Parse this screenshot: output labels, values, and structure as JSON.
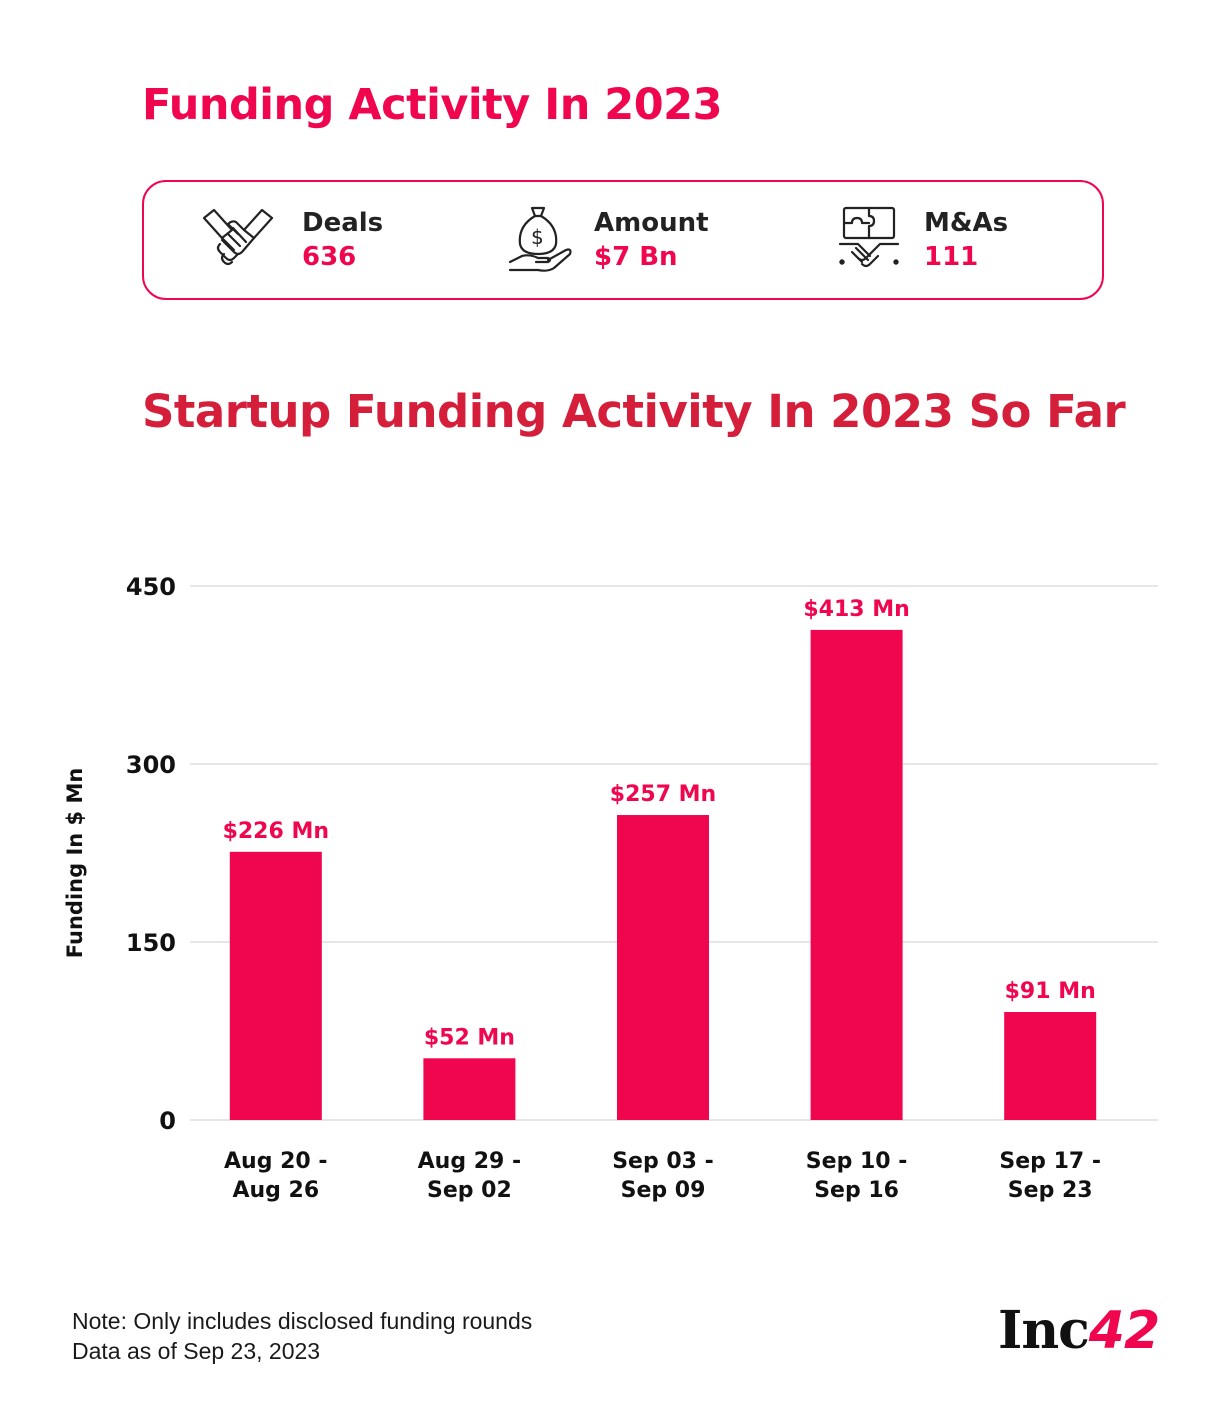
{
  "header": {
    "title": "Funding Activity In 2023"
  },
  "stats": [
    {
      "icon": "handshake-icon",
      "label": "Deals",
      "value": "636"
    },
    {
      "icon": "money-bag-hand-icon",
      "label": "Amount",
      "value": "$7 Bn"
    },
    {
      "icon": "puzzle-handshake-icon",
      "label": "M&As",
      "value": "111"
    }
  ],
  "colors": {
    "accent": "#f0054f",
    "title_red": "#d41e3a",
    "bar": "#f0054f"
  },
  "chart_data": {
    "type": "bar",
    "title": "Startup Funding Activity In 2023 So Far",
    "ylabel": "Funding In $ Mn",
    "xlabel": "",
    "ylim": [
      0,
      450
    ],
    "yticks": [
      0,
      150,
      300,
      450
    ],
    "grid": true,
    "categories": [
      [
        "Aug 20 -",
        "Aug 26"
      ],
      [
        "Aug 29 -",
        "Sep 02"
      ],
      [
        "Sep 03 -",
        "Sep 09"
      ],
      [
        "Sep 10 -",
        "Sep 16"
      ],
      [
        "Sep 17 -",
        "Sep 23"
      ]
    ],
    "values": [
      226,
      52,
      257,
      413,
      91
    ],
    "data_labels": [
      "$226 Mn",
      "$52 Mn",
      "$257 Mn",
      "$413 Mn",
      "$91 Mn"
    ]
  },
  "footer": {
    "note_line1": "Note: Only includes disclosed funding rounds",
    "note_line2": "Data as of Sep 23, 2023",
    "logo_text": "Inc",
    "logo_number": "42"
  }
}
